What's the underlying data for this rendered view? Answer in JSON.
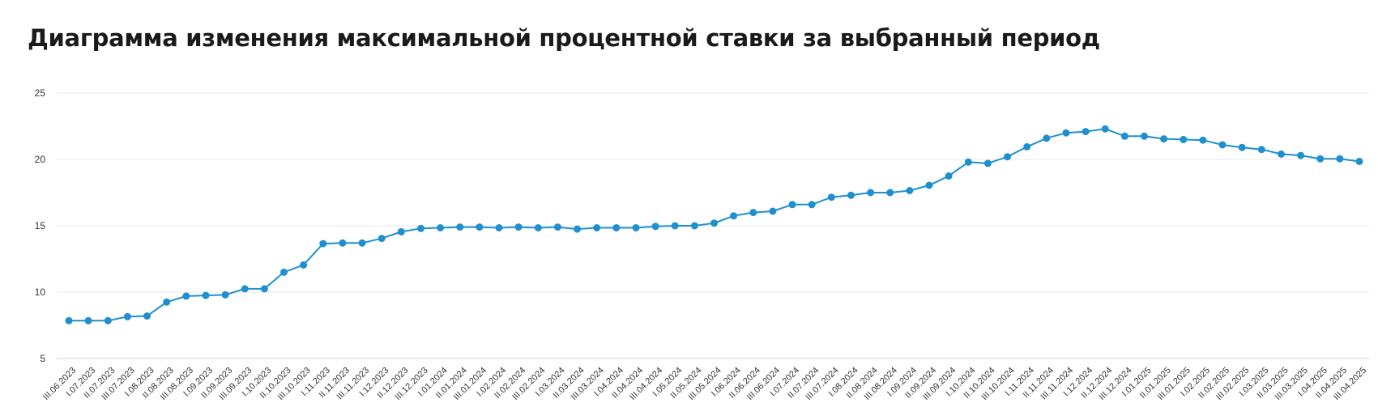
{
  "chart_data": {
    "type": "line",
    "title": "Диаграмма изменения максимальной процентной ставки за выбранный период",
    "ylim": [
      5,
      25
    ],
    "yticks": [
      5,
      10,
      15,
      20,
      25
    ],
    "grid": true,
    "color": "#1e90cf",
    "categories": [
      "III.06.2023",
      "I.07.2023",
      "II.07.2023",
      "III.07.2023",
      "I.08.2023",
      "II.08.2023",
      "III.08.2023",
      "I.09.2023",
      "II.09.2023",
      "III.09.2023",
      "I.10.2023",
      "II.10.2023",
      "III.10.2023",
      "I.11.2023",
      "II.11.2023",
      "III.11.2023",
      "I.12.2023",
      "II.12.2023",
      "III.12.2023",
      "I.01.2024",
      "II.01.2024",
      "III.01.2024",
      "I.02.2024",
      "II.02.2024",
      "III.02.2024",
      "I.03.2024",
      "II.03.2024",
      "III.03.2024",
      "I.04.2024",
      "II.04.2024",
      "III.04.2024",
      "I.05.2024",
      "II.05.2024",
      "III.05.2024",
      "I.06.2024",
      "II.06.2024",
      "III.06.2024",
      "I.07.2024",
      "II.07.2024",
      "III.07.2024",
      "I.08.2024",
      "II.08.2024",
      "III.08.2024",
      "I.09.2024",
      "II.09.2024",
      "III.09.2024",
      "I.10.2024",
      "II.10.2024",
      "III.10.2024",
      "I.11.2024",
      "II.11.2024",
      "III.11.2024",
      "I.12.2024",
      "II.12.2024",
      "III.12.2024",
      "I.01.2025",
      "II.01.2025",
      "III.01.2025",
      "I.02.2025",
      "II.02.2025",
      "III.02.2025",
      "I.03.2025",
      "II.03.2025",
      "III.03.2025",
      "I.04.2025",
      "II.04.2025",
      "III.04.2025"
    ],
    "values": [
      7.85,
      7.85,
      7.85,
      8.15,
      8.2,
      9.25,
      9.7,
      9.75,
      9.8,
      10.25,
      10.25,
      11.5,
      12.05,
      13.65,
      13.7,
      13.7,
      14.05,
      14.55,
      14.8,
      14.85,
      14.9,
      14.9,
      14.85,
      14.9,
      14.85,
      14.9,
      14.75,
      14.85,
      14.85,
      14.85,
      14.95,
      15.0,
      15.0,
      15.2,
      15.75,
      16.0,
      16.1,
      16.6,
      16.6,
      17.15,
      17.3,
      17.5,
      17.5,
      17.65,
      18.05,
      18.75,
      19.8,
      19.7,
      20.2,
      20.95,
      21.6,
      22.0,
      22.1,
      22.3,
      21.75,
      21.75,
      21.55,
      21.5,
      21.45,
      21.1,
      20.9,
      20.75,
      20.4,
      20.3,
      20.05,
      20.05,
      19.85
    ]
  }
}
